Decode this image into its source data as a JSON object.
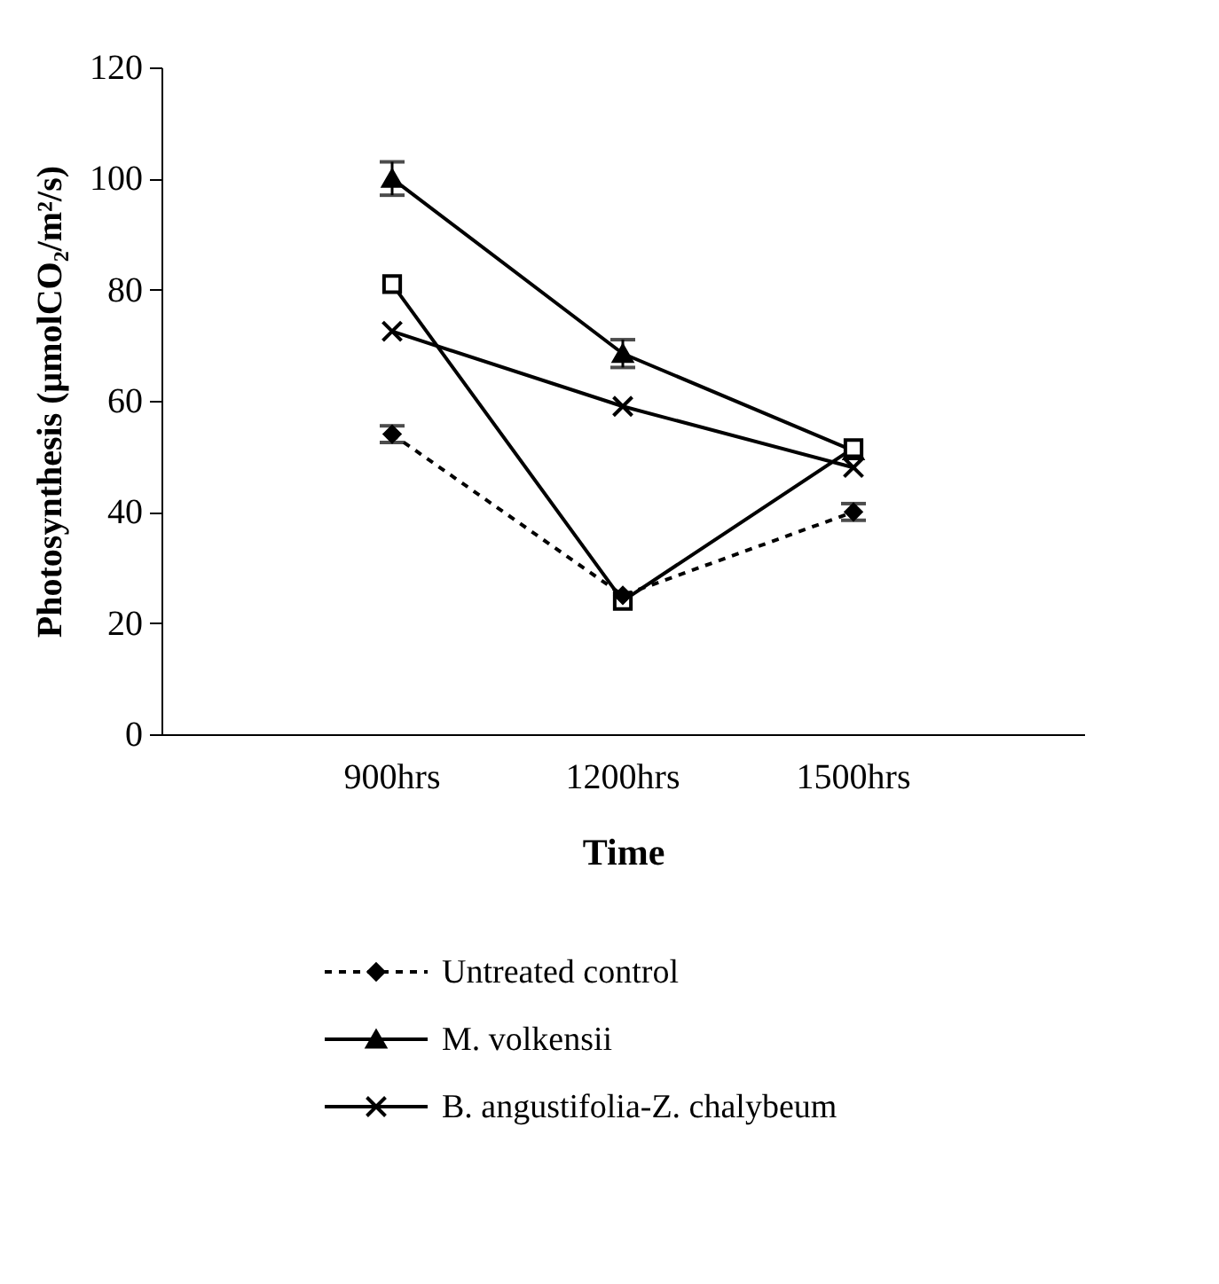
{
  "chart_data": {
    "type": "line",
    "xlabel": "Time",
    "ylabel": "Photosynthesis  (μmolCO₂/m²/s)",
    "categories": [
      "900hrs",
      "1200hrs",
      "1500hrs"
    ],
    "series": [
      {
        "name": "Untreated control",
        "color": "#000000",
        "values": [
          54,
          25,
          40
        ],
        "errors": [
          1.5,
          null,
          1.5
        ],
        "marker": "diamond",
        "line_style": "dashed"
      },
      {
        "color": "#000000",
        "values": [
          81,
          24,
          51.5
        ],
        "marker": "square",
        "line_style": "solid"
      },
      {
        "name": "M. volkensii",
        "color": "#000000",
        "values": [
          100,
          68.5,
          51
        ],
        "errors": [
          3,
          2.5,
          null
        ],
        "marker": "triangle",
        "line_style": "solid"
      },
      {
        "name": "B. angustifolia-Z. chalybeum",
        "color": "#000000",
        "values": [
          72.5,
          59,
          48
        ],
        "marker": "cross",
        "line_style": "solid"
      }
    ],
    "ylim": [
      0,
      120
    ],
    "yticks": [
      0,
      20,
      40,
      60,
      80,
      100,
      120
    ],
    "grid": false,
    "legend": "bottom"
  }
}
